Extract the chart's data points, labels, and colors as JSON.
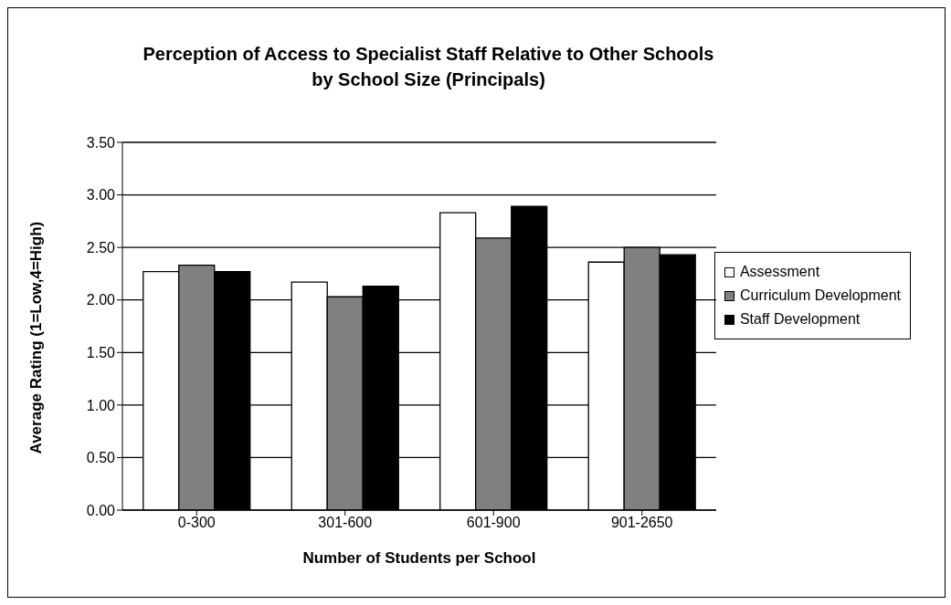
{
  "chart_data": {
    "type": "bar",
    "title": "Perception of Access to Specialist Staff Relative to Other Schools\nby School Size (Principals)",
    "xlabel": "Number of Students per School",
    "ylabel": "Average Rating (1=Low,4=High)",
    "categories": [
      "0-300",
      "301-600",
      "601-900",
      "901-2650"
    ],
    "series": [
      {
        "name": "Assessment",
        "color": "#ffffff",
        "values": [
          2.27,
          2.17,
          2.83,
          2.36
        ]
      },
      {
        "name": "Curriculum Development",
        "color": "#808080",
        "values": [
          2.33,
          2.03,
          2.59,
          2.5
        ]
      },
      {
        "name": "Staff Development",
        "color": "#000000",
        "values": [
          2.27,
          2.13,
          2.89,
          2.43
        ]
      }
    ],
    "ylim": [
      0,
      3.5
    ],
    "yticks": [
      {
        "value": 0,
        "label": "0.00"
      },
      {
        "value": 0.5,
        "label": "0.50"
      },
      {
        "value": 1,
        "label": "1.00"
      },
      {
        "value": 1.5,
        "label": "1.50"
      },
      {
        "value": 2,
        "label": "2.00"
      },
      {
        "value": 2.5,
        "label": "2.50"
      },
      {
        "value": 3,
        "label": "3.00"
      },
      {
        "value": 3.5,
        "label": "3.50"
      }
    ],
    "grid": "y",
    "legend": "right"
  }
}
